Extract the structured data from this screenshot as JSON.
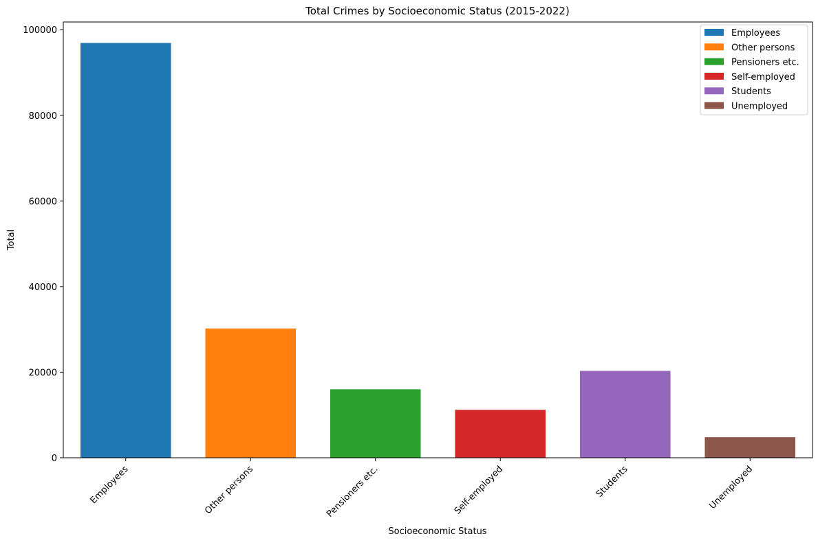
{
  "chart_data": {
    "type": "bar",
    "title": "Total Crimes by Socioeconomic Status (2015-2022)",
    "xlabel": "Socioeconomic Status",
    "ylabel": "Total",
    "categories": [
      "Employees",
      "Other persons",
      "Pensioners etc.",
      "Self-employed",
      "Students",
      "Unemployed"
    ],
    "values": [
      96900,
      30200,
      16000,
      11200,
      20300,
      4800
    ],
    "colors": [
      "#1f77b4",
      "#ff7f0e",
      "#2ca02c",
      "#d62728",
      "#9467bd",
      "#8c564b"
    ],
    "ylim": [
      0,
      101800
    ],
    "yticks": [
      0,
      20000,
      40000,
      60000,
      80000,
      100000
    ],
    "ytick_labels": [
      "0",
      "20000",
      "40000",
      "60000",
      "80000",
      "100000"
    ],
    "legend": {
      "position": "top-right",
      "entries": [
        "Employees",
        "Other persons",
        "Pensioners etc.",
        "Self-employed",
        "Students",
        "Unemployed"
      ]
    },
    "grid": false
  }
}
